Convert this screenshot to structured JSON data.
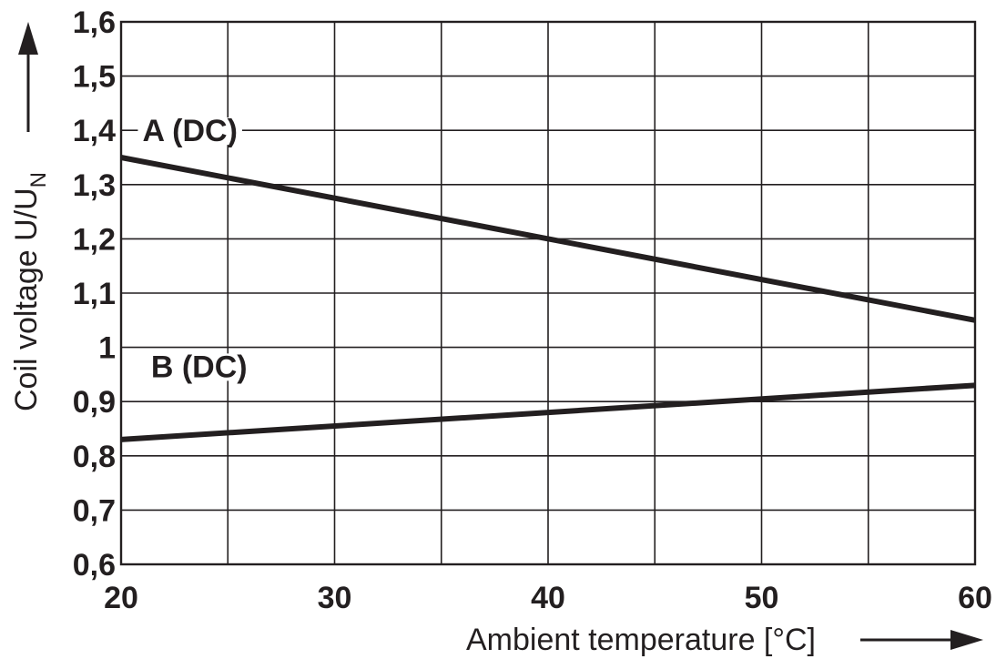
{
  "chart_data": {
    "type": "line",
    "xlabel": "Ambient temperature [°C]",
    "ylabel": "Coil voltage U/U",
    "ylabel_subscript": "N",
    "xlim": [
      20,
      60
    ],
    "ylim": [
      0.6,
      1.6
    ],
    "x_ticks": [
      20,
      25,
      30,
      35,
      40,
      45,
      50,
      55,
      60
    ],
    "x_tick_labels": [
      "20",
      "30",
      "40",
      "50",
      "60"
    ],
    "y_ticks": [
      0.6,
      0.7,
      0.8,
      0.9,
      1.0,
      1.1,
      1.2,
      1.3,
      1.4,
      1.5,
      1.6
    ],
    "y_tick_labels": [
      "0,6",
      "0,7",
      "0,8",
      "0,9",
      "1",
      "1,1",
      "1,2",
      "1,3",
      "1,4",
      "1,5",
      "1,6"
    ],
    "grid": true,
    "series": [
      {
        "name": "A (DC)",
        "x": [
          20,
          60
        ],
        "y": [
          1.35,
          1.05
        ]
      },
      {
        "name": "B (DC)",
        "x": [
          20,
          60
        ],
        "y": [
          0.83,
          0.93
        ]
      }
    ],
    "colors": {
      "line": "#231f20",
      "grid": "#231f20"
    }
  }
}
